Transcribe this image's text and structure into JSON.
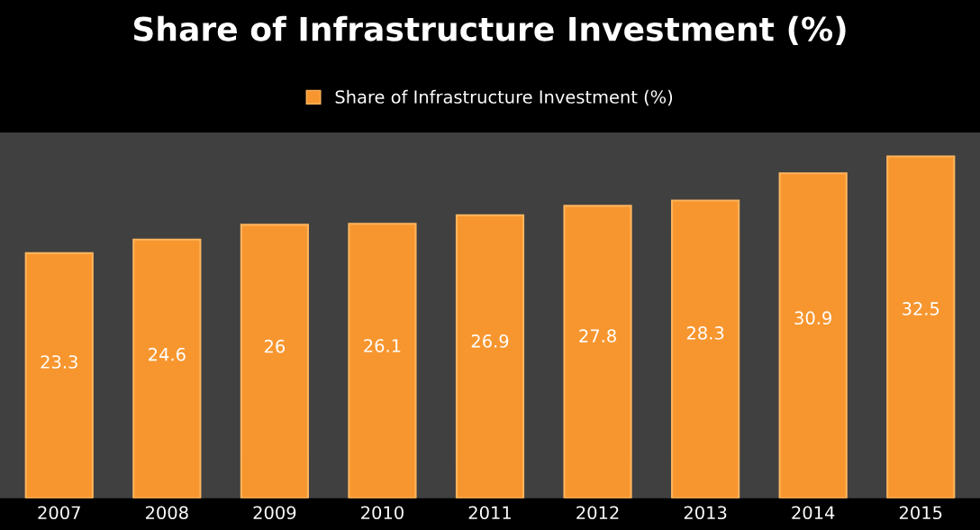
{
  "chart_data": {
    "type": "bar",
    "title": "Share of Infrastructure Investment (%)",
    "categories": [
      "2007",
      "2008",
      "2009",
      "2010",
      "2011",
      "2012",
      "2013",
      "2014",
      "2015"
    ],
    "series": [
      {
        "name": "Share of Infrastructure Investment (%)",
        "color": "#f7962f",
        "values": [
          23.3,
          24.6,
          26,
          26.1,
          26.9,
          27.8,
          28.3,
          30.9,
          32.5
        ]
      }
    ],
    "data_labels": true,
    "legend": "top",
    "grid": false,
    "tick_labels": "x"
  }
}
